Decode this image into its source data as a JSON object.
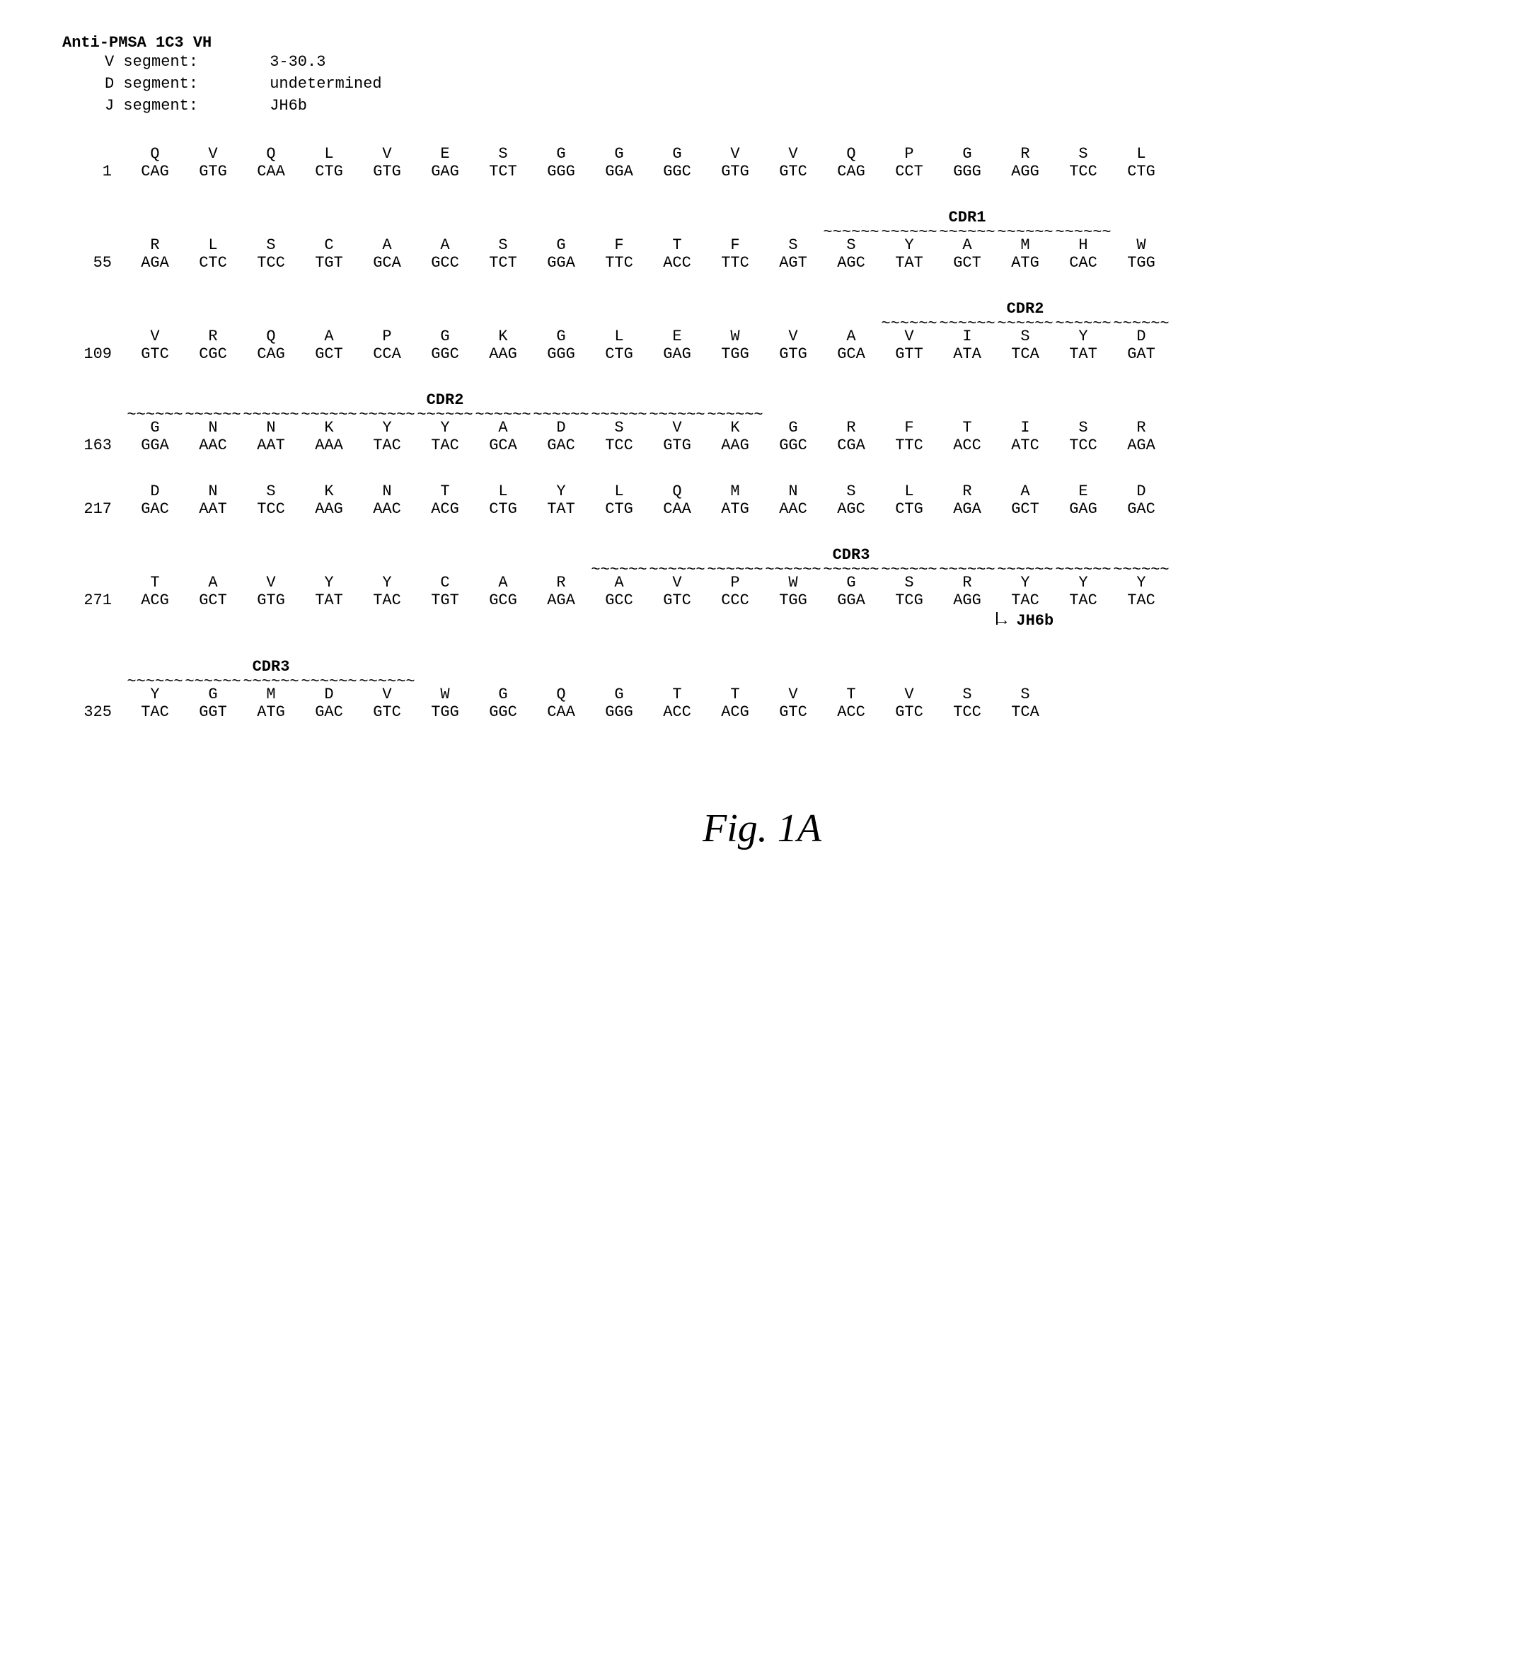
{
  "title": "Anti-PMSA 1C3 VH",
  "segments": {
    "v_label": "V segment:",
    "v_value": "3-30.3",
    "d_label": "D segment:",
    "d_value": "undetermined",
    "j_label": "J segment:",
    "j_value": "JH6b"
  },
  "jh_label": "JH6b",
  "figure_caption": "Fig. 1A",
  "cdr_labels": {
    "cdr1": "CDR1",
    "cdr2": "CDR2",
    "cdr3": "CDR3"
  },
  "rows": [
    {
      "pos": "1",
      "aa": [
        "Q",
        "V",
        "Q",
        "L",
        "V",
        "E",
        "S",
        "G",
        "G",
        "G",
        "V",
        "V",
        "Q",
        "P",
        "G",
        "R",
        "S",
        "L"
      ],
      "nt": [
        "CAG",
        "GTG",
        "CAA",
        "CTG",
        "GTG",
        "GAG",
        "TCT",
        "GGG",
        "GGA",
        "GGC",
        "GTG",
        "GTC",
        "CAG",
        "CCT",
        "GGG",
        "AGG",
        "TCC",
        "CTG"
      ],
      "cdr": null
    },
    {
      "pos": "55",
      "aa": [
        "R",
        "L",
        "S",
        "C",
        "A",
        "A",
        "S",
        "G",
        "F",
        "T",
        "F",
        "S",
        "S",
        "Y",
        "A",
        "M",
        "H",
        "W"
      ],
      "nt": [
        "AGA",
        "CTC",
        "TCC",
        "TGT",
        "GCA",
        "GCC",
        "TCT",
        "GGA",
        "TTC",
        "ACC",
        "TTC",
        "AGT",
        "AGC",
        "TAT",
        "GCT",
        "ATG",
        "CAC",
        "TGG"
      ],
      "cdr": {
        "label": "CDR1",
        "start": 12,
        "end": 16
      }
    },
    {
      "pos": "109",
      "aa": [
        "V",
        "R",
        "Q",
        "A",
        "P",
        "G",
        "K",
        "G",
        "L",
        "E",
        "W",
        "V",
        "A",
        "V",
        "I",
        "S",
        "Y",
        "D"
      ],
      "nt": [
        "GTC",
        "CGC",
        "CAG",
        "GCT",
        "CCA",
        "GGC",
        "AAG",
        "GGG",
        "CTG",
        "GAG",
        "TGG",
        "GTG",
        "GCA",
        "GTT",
        "ATA",
        "TCA",
        "TAT",
        "GAT"
      ],
      "cdr": {
        "label": "CDR2",
        "start": 13,
        "end": 17
      }
    },
    {
      "pos": "163",
      "aa": [
        "G",
        "N",
        "N",
        "K",
        "Y",
        "Y",
        "A",
        "D",
        "S",
        "V",
        "K",
        "G",
        "R",
        "F",
        "T",
        "I",
        "S",
        "R"
      ],
      "nt": [
        "GGA",
        "AAC",
        "AAT",
        "AAA",
        "TAC",
        "TAC",
        "GCA",
        "GAC",
        "TCC",
        "GTG",
        "AAG",
        "GGC",
        "CGA",
        "TTC",
        "ACC",
        "ATC",
        "TCC",
        "AGA"
      ],
      "cdr": {
        "label": "CDR2",
        "start": 0,
        "end": 10,
        "labelCol": 5
      }
    },
    {
      "pos": "217",
      "aa": [
        "D",
        "N",
        "S",
        "K",
        "N",
        "T",
        "L",
        "Y",
        "L",
        "Q",
        "M",
        "N",
        "S",
        "L",
        "R",
        "A",
        "E",
        "D"
      ],
      "nt": [
        "GAC",
        "AAT",
        "TCC",
        "AAG",
        "AAC",
        "ACG",
        "CTG",
        "TAT",
        "CTG",
        "CAA",
        "ATG",
        "AAC",
        "AGC",
        "CTG",
        "AGA",
        "GCT",
        "GAG",
        "GAC"
      ],
      "cdr": null
    },
    {
      "pos": "271",
      "aa": [
        "T",
        "A",
        "V",
        "Y",
        "Y",
        "C",
        "A",
        "R",
        "A",
        "V",
        "P",
        "W",
        "G",
        "S",
        "R",
        "Y",
        "Y",
        "Y"
      ],
      "nt": [
        "ACG",
        "GCT",
        "GTG",
        "TAT",
        "TAC",
        "TGT",
        "GCG",
        "AGA",
        "GCC",
        "GTC",
        "CCC",
        "TGG",
        "GGA",
        "TCG",
        "AGG",
        "TAC",
        "TAC",
        "TAC"
      ],
      "cdr": {
        "label": "CDR3",
        "start": 8,
        "end": 17
      },
      "jh_arrow": true,
      "jh_col": 15
    },
    {
      "pos": "325",
      "aa": [
        "Y",
        "G",
        "M",
        "D",
        "V",
        "W",
        "G",
        "Q",
        "G",
        "T",
        "T",
        "V",
        "T",
        "V",
        "S",
        "S"
      ],
      "nt": [
        "TAC",
        "GGT",
        "ATG",
        "GAC",
        "GTC",
        "TGG",
        "GGC",
        "CAA",
        "GGG",
        "ACC",
        "ACG",
        "GTC",
        "ACC",
        "GTC",
        "TCC",
        "TCA"
      ],
      "cdr": {
        "label": "CDR3",
        "start": 0,
        "end": 4,
        "labelCol": 2
      }
    }
  ]
}
